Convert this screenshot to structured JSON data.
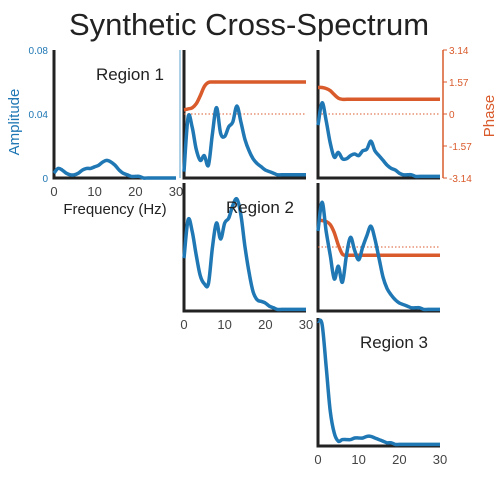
{
  "title": "Synthetic Cross-Spectrum",
  "colors": {
    "amplitude": "#1f77b4",
    "phase": "#d95a2b",
    "axis": "#222222",
    "divider": "#5ba4cf"
  },
  "labels": {
    "amplitude": "Amplitude",
    "frequency": "Frequency (Hz)",
    "phase": "Phase"
  },
  "chart_data": {
    "type": "line",
    "title": "Synthetic Cross-Spectrum",
    "layout": "lower-triangular grid, 3 regions; diagonal = auto-spectrum amplitude, off-diagonal = cross-spectrum amplitude and phase",
    "xlabel": "Frequency (Hz)",
    "ylabel": "Amplitude",
    "y2label": "Phase",
    "xlim": [
      0,
      30
    ],
    "ylim": [
      0,
      0.08
    ],
    "y2lim": [
      -3.14,
      3.14
    ],
    "x_ticks": [
      0,
      10,
      20,
      30
    ],
    "x_tick_labels": [
      "0",
      "10",
      "20",
      "30"
    ],
    "y_ticks": [
      0,
      0.04,
      0.08
    ],
    "y_tick_labels": [
      "0",
      "0.04",
      "0.08"
    ],
    "phase_ticks": [
      3.14,
      1.57,
      0,
      -1.57,
      -3.14
    ],
    "phase_tick_labels": [
      "3.14",
      "1.57",
      "0",
      "-1.57",
      "-3.14"
    ],
    "grid": false,
    "x": [
      0,
      1,
      2,
      3,
      4,
      5,
      6,
      7,
      8,
      9,
      10,
      11,
      12,
      13,
      14,
      15,
      16,
      17,
      18,
      19,
      20,
      21,
      22,
      23,
      24,
      25,
      26,
      27,
      28,
      29,
      30
    ],
    "panels": [
      {
        "row": 0,
        "col": 0,
        "kind": "auto",
        "region": "Region 1",
        "amplitude": [
          0.003,
          0.006,
          0.005,
          0.003,
          0.002,
          0.002,
          0.003,
          0.005,
          0.006,
          0.006,
          0.007,
          0.008,
          0.01,
          0.011,
          0.01,
          0.008,
          0.005,
          0.003,
          0.002,
          0.001,
          0.001,
          0.001,
          0,
          0,
          0,
          0,
          0,
          0,
          0,
          0,
          0
        ]
      },
      {
        "row": 0,
        "col": 1,
        "kind": "cross",
        "regions": [
          "Region 1",
          "Region 2"
        ],
        "amplitude": [
          0.004,
          0.038,
          0.032,
          0.018,
          0.011,
          0.014,
          0.008,
          0.028,
          0.044,
          0.028,
          0.026,
          0.032,
          0.035,
          0.045,
          0.035,
          0.024,
          0.017,
          0.012,
          0.009,
          0.007,
          0.005,
          0.004,
          0.003,
          0.002,
          0.002,
          0.002,
          0.002,
          0.002,
          0.002,
          0.002,
          0.002
        ],
        "phase": [
          0.2,
          0.25,
          0.3,
          0.5,
          0.9,
          1.35,
          1.55,
          1.57,
          1.57,
          1.57,
          1.57,
          1.57,
          1.57,
          1.57,
          1.57,
          1.57,
          1.57,
          1.57,
          1.57,
          1.57,
          1.57,
          1.57,
          1.57,
          1.57,
          1.57,
          1.57,
          1.57,
          1.57,
          1.57,
          1.57,
          1.57
        ]
      },
      {
        "row": 0,
        "col": 2,
        "kind": "cross",
        "regions": [
          "Region 1",
          "Region 3"
        ],
        "amplitude": [
          0.033,
          0.047,
          0.036,
          0.022,
          0.013,
          0.016,
          0.012,
          0.012,
          0.014,
          0.015,
          0.014,
          0.017,
          0.018,
          0.023,
          0.017,
          0.014,
          0.011,
          0.008,
          0.006,
          0.005,
          0.003,
          0.002,
          0.002,
          0.002,
          0.001,
          0.001,
          0.001,
          0.001,
          0.001,
          0.001,
          0.001
        ],
        "phase": [
          1.3,
          1.3,
          1.25,
          1.15,
          0.95,
          0.78,
          0.72,
          0.72,
          0.72,
          0.72,
          0.72,
          0.72,
          0.72,
          0.72,
          0.72,
          0.72,
          0.72,
          0.72,
          0.72,
          0.72,
          0.72,
          0.72,
          0.72,
          0.72,
          0.72,
          0.72,
          0.72,
          0.72,
          0.72,
          0.72,
          0.72
        ]
      },
      {
        "row": 1,
        "col": 1,
        "kind": "auto",
        "region": "Region 2",
        "amplitude": [
          0.033,
          0.057,
          0.05,
          0.035,
          0.022,
          0.017,
          0.017,
          0.04,
          0.055,
          0.045,
          0.055,
          0.058,
          0.066,
          0.07,
          0.06,
          0.04,
          0.024,
          0.012,
          0.007,
          0.006,
          0.005,
          0.003,
          0.002,
          0.001,
          0.001,
          0.001,
          0.001,
          0.001,
          0.001,
          0.001,
          0.001
        ]
      },
      {
        "row": 1,
        "col": 2,
        "kind": "cross",
        "regions": [
          "Region 2",
          "Region 3"
        ],
        "amplitude": [
          0.05,
          0.068,
          0.05,
          0.035,
          0.02,
          0.028,
          0.018,
          0.035,
          0.046,
          0.038,
          0.032,
          0.04,
          0.047,
          0.053,
          0.045,
          0.033,
          0.021,
          0.014,
          0.01,
          0.007,
          0.005,
          0.004,
          0.003,
          0.002,
          0.002,
          0.002,
          0.001,
          0.001,
          0.001,
          0.001,
          0.001
        ],
        "phase": [
          1.3,
          1.3,
          1.25,
          1.1,
          0.7,
          0.1,
          -0.35,
          -0.4,
          -0.4,
          -0.4,
          -0.4,
          -0.4,
          -0.4,
          -0.4,
          -0.4,
          -0.4,
          -0.4,
          -0.4,
          -0.4,
          -0.4,
          -0.4,
          -0.4,
          -0.4,
          -0.4,
          -0.4,
          -0.4,
          -0.4,
          -0.4,
          -0.4,
          -0.4,
          -0.4
        ]
      },
      {
        "row": 2,
        "col": 2,
        "kind": "auto",
        "region": "Region 3",
        "amplitude": [
          0.078,
          0.076,
          0.05,
          0.022,
          0.008,
          0.003,
          0.004,
          0.004,
          0.004,
          0.005,
          0.005,
          0.005,
          0.006,
          0.006,
          0.005,
          0.004,
          0.003,
          0.002,
          0.002,
          0.001,
          0.001,
          0.001,
          0.001,
          0.001,
          0.001,
          0.001,
          0.001,
          0.001,
          0.001,
          0.001,
          0.001
        ]
      }
    ]
  }
}
